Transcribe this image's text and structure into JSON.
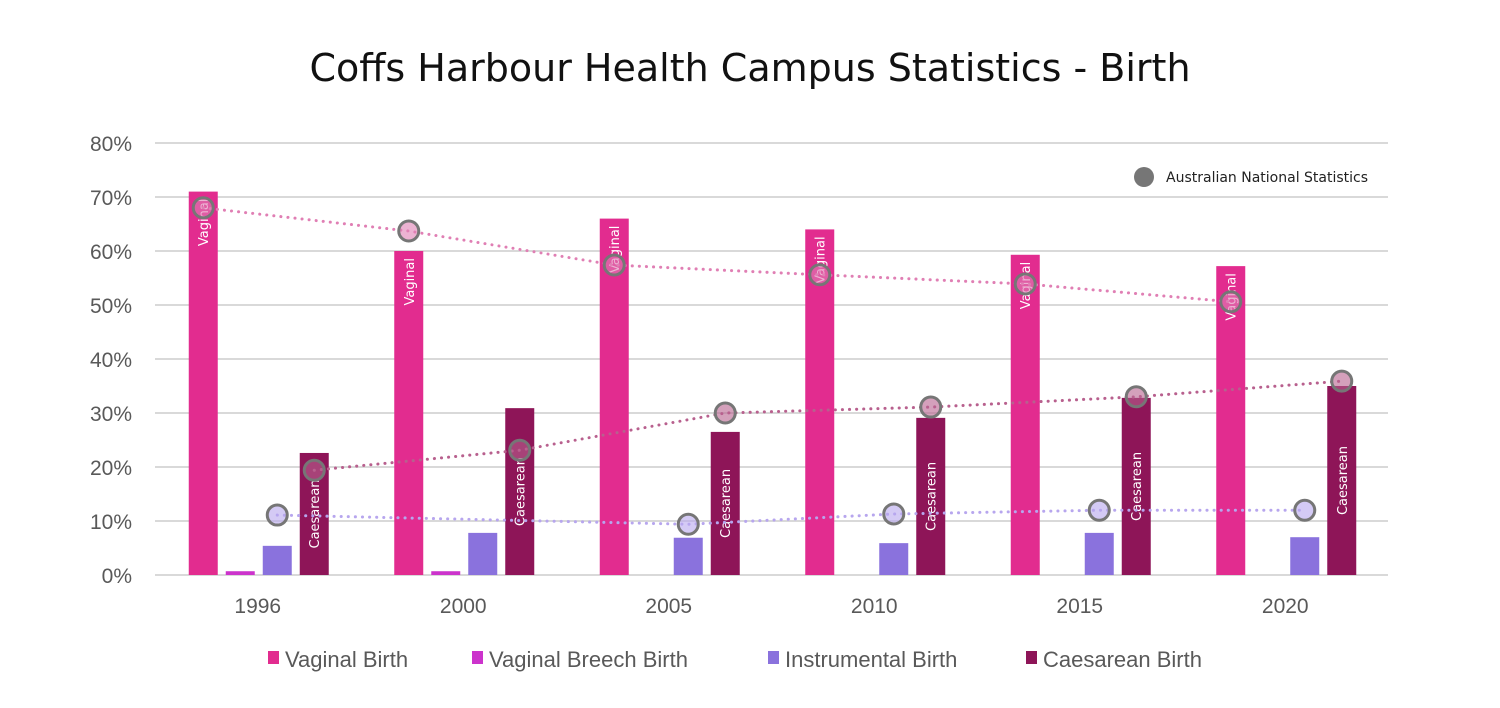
{
  "chart_data": {
    "type": "bar",
    "title": "Coffs Harbour Health Campus Statistics - Birth",
    "xlabel": "",
    "ylabel": "",
    "ylim": [
      0,
      80
    ],
    "yticks": [
      "0%",
      "10%",
      "20%",
      "30%",
      "40%",
      "50%",
      "60%",
      "70%",
      "80%"
    ],
    "grid": true,
    "legend_position": "bottom",
    "categories": [
      "1996",
      "2000",
      "2005",
      "2010",
      "2015",
      "2020"
    ],
    "series": [
      {
        "name": "Vaginal Birth",
        "color": "#e22c8f",
        "bar_label": "Vaginal",
        "values": [
          71,
          60,
          66,
          64,
          59.3,
          57.2
        ]
      },
      {
        "name": "Vaginal Breech Birth",
        "color": "#cc33cc",
        "bar_label": "",
        "values": [
          0.7,
          0.7,
          0,
          0,
          0,
          0
        ]
      },
      {
        "name": "Instrumental Birth",
        "color": "#8a72dd",
        "bar_label": "",
        "values": [
          5.4,
          7.8,
          6.9,
          5.9,
          7.8,
          7.0
        ]
      },
      {
        "name": "Caesarean Birth",
        "color": "#8e1558",
        "bar_label": "Caesarean",
        "values": [
          22.6,
          30.9,
          26.5,
          29.1,
          32.8,
          35.0
        ]
      }
    ],
    "overlay": {
      "name": "Australian National Statistics",
      "marker_color": "#767676",
      "legend_position": "top-right",
      "lines": [
        {
          "series": "Vaginal Birth",
          "color": "#e07fb4",
          "values": [
            68,
            63.7,
            57.4,
            55.6,
            53.9,
            50.6
          ]
        },
        {
          "series": "Instrumental Birth",
          "color": "#b7a6ee",
          "values": [
            11.1,
            null,
            9.4,
            11.3,
            12,
            12
          ]
        },
        {
          "series": "Caesarean Birth",
          "color": "#b8608e",
          "values": [
            19.4,
            23.1,
            30,
            31.1,
            33,
            35.9
          ]
        }
      ]
    }
  }
}
